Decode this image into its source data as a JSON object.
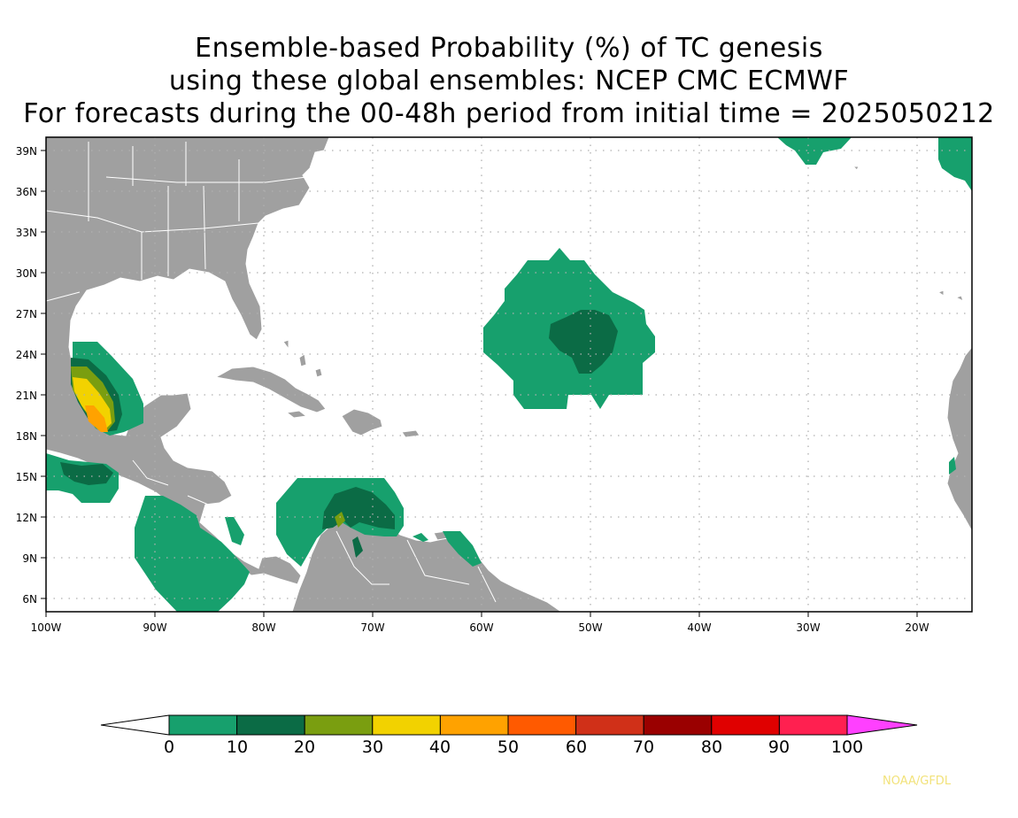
{
  "title": {
    "line1": "Ensemble-based Probability (%) of TC genesis",
    "line2": "using these global ensembles:   NCEP CMC ECMWF",
    "line3": "For forecasts during the 00-48h period from initial time = 2025050212"
  },
  "map": {
    "lat_labels": [
      "39N",
      "36N",
      "33N",
      "30N",
      "27N",
      "24N",
      "21N",
      "18N",
      "15N",
      "12N",
      "9N",
      "6N"
    ],
    "lon_labels": [
      "100W",
      "90W",
      "80W",
      "70W",
      "60W",
      "50W",
      "40W",
      "30W",
      "20W"
    ],
    "land_color": "#a0a0a0",
    "border_color": "#ffffff",
    "grid": "dotted"
  },
  "colorbar": {
    "labels": [
      "0",
      "10",
      "20",
      "30",
      "40",
      "50",
      "60",
      "70",
      "80",
      "90",
      "100"
    ],
    "colors": [
      "#ffffff",
      "#17a06d",
      "#0b6b45",
      "#7a9e10",
      "#f2d200",
      "#ffa200",
      "#ff5a00",
      "#d03018",
      "#9a0000",
      "#e00000",
      "#ff2050",
      "#ff40ff"
    ]
  },
  "credit": "NOAA/GFDL"
}
